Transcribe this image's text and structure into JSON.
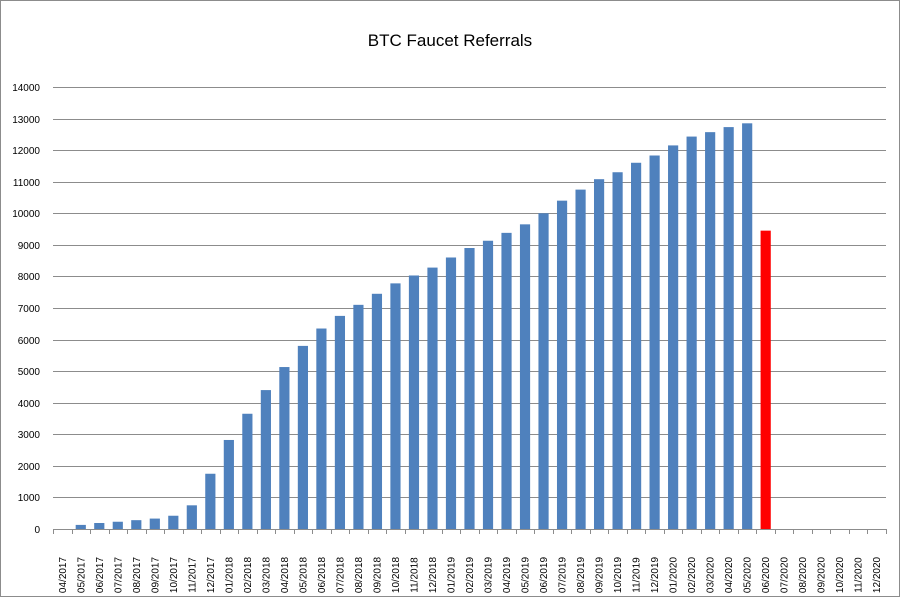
{
  "chart_data": {
    "type": "bar",
    "title": "BTC Faucet Referrals",
    "xlabel": "",
    "ylabel": "",
    "ylim": [
      0,
      14000
    ],
    "yticks": [
      0,
      1000,
      2000,
      3000,
      4000,
      5000,
      6000,
      7000,
      8000,
      9000,
      10000,
      11000,
      12000,
      13000,
      14000
    ],
    "grid": true,
    "legend": "none",
    "categories": [
      "04/2017",
      "05/2017",
      "06/2017",
      "07/2017",
      "08/2017",
      "09/2017",
      "10/2017",
      "11/2017",
      "12/2017",
      "01/2018",
      "02/2018",
      "03/2018",
      "04/2018",
      "05/2018",
      "06/2018",
      "07/2018",
      "08/2018",
      "09/2018",
      "10/2018",
      "11/2018",
      "12/2018",
      "01/2019",
      "02/2019",
      "03/2019",
      "04/2019",
      "05/2019",
      "06/2019",
      "07/2019",
      "08/2019",
      "09/2019",
      "10/2019",
      "11/2019",
      "12/2019",
      "01/2020",
      "02/2020",
      "03/2020",
      "04/2020",
      "05/2020",
      "06/2020",
      "07/2020",
      "08/2020",
      "09/2020",
      "10/2020",
      "11/2020",
      "12/2020"
    ],
    "values": [
      0,
      130,
      190,
      230,
      280,
      330,
      420,
      750,
      1750,
      2820,
      3650,
      4400,
      5130,
      5800,
      6350,
      6750,
      7100,
      7450,
      7780,
      8030,
      8280,
      8600,
      8900,
      9130,
      9380,
      9650,
      10000,
      10400,
      10750,
      11080,
      11300,
      11600,
      11830,
      12150,
      12430,
      12570,
      12730,
      12850,
      9450,
      null,
      null,
      null,
      null,
      null,
      null
    ],
    "colors": {
      "bar": "#4f81bd",
      "highlight": "#ff0000",
      "grid": "#8c8c8c",
      "axis": "#8c8c8c"
    },
    "highlight_index": 38
  }
}
